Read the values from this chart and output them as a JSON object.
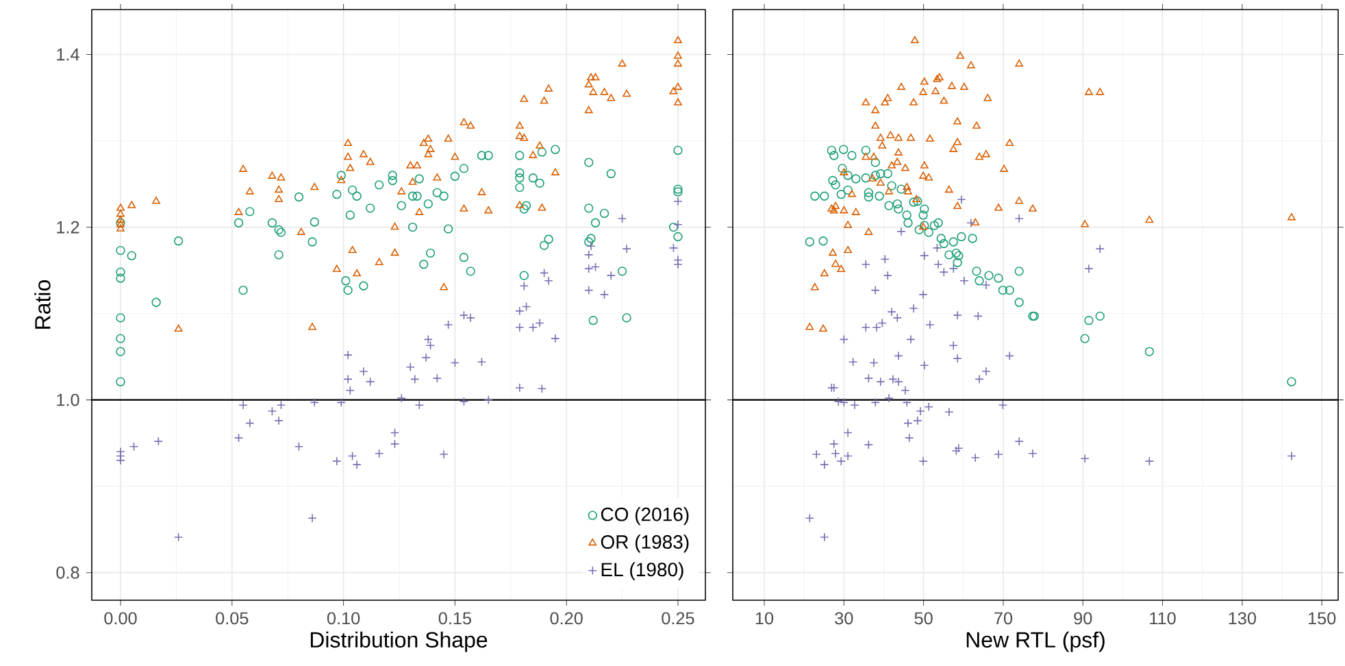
{
  "chart_data": [
    {
      "type": "scatter",
      "xlabel": "Distribution Shape",
      "ylabel": "Ratio",
      "xlim": [
        -0.0129,
        0.2623
      ],
      "ylim": [
        0.768,
        1.452
      ],
      "xticks": [
        {
          "value": 0,
          "label": "0.00"
        },
        0.05,
        {
          "value": 0.1,
          "label": "0.10"
        },
        0.15,
        {
          "value": 0.2,
          "label": "0.20"
        },
        0.25
      ],
      "yticks": [
        0.8,
        {
          "value": 1,
          "label": "1.0"
        },
        1.2,
        1.4
      ],
      "grid": true,
      "legend": "bottom right",
      "ref_lines": [
        {
          "axis": "y",
          "value": 1,
          "color": "#000000"
        }
      ],
      "series": [
        {
          "name": "CO (2016)",
          "color": "#1b9e77",
          "marker": "circle",
          "x": [
            0,
            0,
            0,
            0,
            0,
            0,
            0,
            0,
            0.005,
            0.016,
            0.026,
            0.055,
            0.053,
            0.058,
            0.068,
            0.071,
            0.072,
            0.071,
            0.08,
            0.087,
            0.086,
            0.097,
            0.099,
            0.104,
            0.106,
            0.103,
            0.112,
            0.116,
            0.122,
            0.122,
            0.101,
            0.102,
            0.109,
            0.134,
            0.131,
            0.133,
            0.126,
            0.138,
            0.142,
            0.145,
            0.15,
            0.154,
            0.162,
            0.165,
            0.131,
            0.147,
            0.139,
            0.136,
            0.154,
            0.157,
            0.179,
            0.179,
            0.179,
            0.179,
            0.185,
            0.188,
            0.189,
            0.195,
            0.182,
            0.181,
            0.192,
            0.19,
            0.181,
            0.21,
            0.22,
            0.21,
            0.217,
            0.213,
            0.211,
            0.21,
            0.225,
            0.212,
            0.227,
            0.25,
            0.25,
            0.25,
            0.248,
            0.25
          ],
          "values": [
            1.173,
            1.148,
            1.141,
            1.095,
            1.071,
            1.056,
            1.021,
            1.205,
            1.167,
            1.113,
            1.184,
            1.127,
            1.205,
            1.218,
            1.205,
            1.197,
            1.194,
            1.168,
            1.235,
            1.206,
            1.183,
            1.238,
            1.26,
            1.243,
            1.236,
            1.214,
            1.222,
            1.249,
            1.26,
            1.254,
            1.138,
            1.127,
            1.132,
            1.256,
            1.236,
            1.236,
            1.225,
            1.227,
            1.24,
            1.236,
            1.259,
            1.268,
            1.283,
            1.283,
            1.2,
            1.198,
            1.17,
            1.157,
            1.165,
            1.149,
            1.283,
            1.263,
            1.257,
            1.246,
            1.257,
            1.251,
            1.287,
            1.29,
            1.225,
            1.221,
            1.186,
            1.179,
            1.144,
            1.275,
            1.262,
            1.222,
            1.216,
            1.205,
            1.187,
            1.183,
            1.149,
            1.092,
            1.095,
            1.289,
            1.244,
            1.241,
            1.2,
            1.189
          ]
        },
        {
          "name": "OR (1983)",
          "color": "#d95f02",
          "marker": "triangle",
          "x": [
            0,
            0,
            0,
            0,
            0,
            0.005,
            0.016,
            0.026,
            0.055,
            0.058,
            0.053,
            0.068,
            0.072,
            0.071,
            0.071,
            0.081,
            0.087,
            0.086,
            0.102,
            0.102,
            0.103,
            0.109,
            0.112,
            0.099,
            0.104,
            0.097,
            0.106,
            0.116,
            0.123,
            0.123,
            0.138,
            0.136,
            0.139,
            0.138,
            0.13,
            0.133,
            0.147,
            0.15,
            0.154,
            0.157,
            0.142,
            0.131,
            0.126,
            0.134,
            0.162,
            0.154,
            0.165,
            0.145,
            0.179,
            0.179,
            0.181,
            0.188,
            0.185,
            0.195,
            0.179,
            0.189,
            0.181,
            0.19,
            0.192,
            0.211,
            0.213,
            0.21,
            0.212,
            0.217,
            0.22,
            0.21,
            0.225,
            0.227,
            0.25,
            0.25,
            0.25,
            0.25,
            0.248,
            0.25
          ],
          "values": [
            1.222,
            1.215,
            1.208,
            1.203,
            1.198,
            1.225,
            1.23,
            1.082,
            1.267,
            1.241,
            1.217,
            1.259,
            1.257,
            1.243,
            1.232,
            1.194,
            1.246,
            1.084,
            1.297,
            1.281,
            1.268,
            1.284,
            1.275,
            1.254,
            1.173,
            1.151,
            1.146,
            1.159,
            1.2,
            1.17,
            1.302,
            1.297,
            1.29,
            1.284,
            1.271,
            1.271,
            1.302,
            1.281,
            1.321,
            1.317,
            1.257,
            1.252,
            1.241,
            1.217,
            1.24,
            1.221,
            1.219,
            1.13,
            1.317,
            1.305,
            1.303,
            1.294,
            1.283,
            1.263,
            1.225,
            1.222,
            1.348,
            1.346,
            1.36,
            1.373,
            1.373,
            1.365,
            1.356,
            1.356,
            1.349,
            1.335,
            1.389,
            1.354,
            1.416,
            1.398,
            1.389,
            1.362,
            1.357,
            1.344
          ]
        },
        {
          "name": "EL (1980)",
          "color": "#7570b3",
          "marker": "cross",
          "x": [
            0,
            0,
            0,
            0.006,
            0.017,
            0.026,
            0.055,
            0.058,
            0.053,
            0.068,
            0.072,
            0.071,
            0.087,
            0.08,
            0.086,
            0.099,
            0.097,
            0.104,
            0.106,
            0.116,
            0.123,
            0.123,
            0.126,
            0.134,
            0.145,
            0.154,
            0.102,
            0.109,
            0.102,
            0.103,
            0.112,
            0.147,
            0.154,
            0.157,
            0.138,
            0.139,
            0.137,
            0.13,
            0.132,
            0.142,
            0.15,
            0.162,
            0.165,
            0.179,
            0.189,
            0.179,
            0.182,
            0.179,
            0.185,
            0.188,
            0.181,
            0.19,
            0.192,
            0.195,
            0.21,
            0.211,
            0.21,
            0.213,
            0.21,
            0.217,
            0.22,
            0.225,
            0.227,
            0.25,
            0.25,
            0.248,
            0.25,
            0.25
          ],
          "values": [
            0.94,
            0.935,
            0.93,
            0.946,
            0.952,
            0.841,
            0.994,
            0.973,
            0.956,
            0.987,
            0.994,
            0.976,
            0.997,
            0.946,
            0.863,
            0.997,
            0.929,
            0.935,
            0.925,
            0.938,
            0.949,
            0.962,
            1.002,
            0.994,
            0.937,
            0.998,
            1.052,
            1.033,
            1.024,
            1.011,
            1.021,
            1.087,
            1.098,
            1.095,
            1.07,
            1.063,
            1.049,
            1.038,
            1.024,
            1.025,
            1.043,
            1.044,
            1.0,
            1.014,
            1.013,
            1.103,
            1.108,
            1.084,
            1.084,
            1.089,
            1.132,
            1.147,
            1.138,
            1.071,
            1.168,
            1.178,
            1.152,
            1.154,
            1.127,
            1.122,
            1.144,
            1.21,
            1.175,
            1.23,
            1.203,
            1.176,
            1.162,
            1.157
          ]
        }
      ]
    },
    {
      "type": "scatter",
      "xlabel": "New RTL (psf)",
      "tick_labels": "x",
      "xlim": [
        2.09,
        154.1
      ],
      "ylim": [
        0.768,
        1.452
      ],
      "xticks": [
        10,
        30,
        50,
        70,
        90,
        110,
        130,
        150
      ],
      "yticks": [
        0.8,
        1,
        1.2,
        1.4
      ],
      "grid": true,
      "ref_lines": [
        {
          "axis": "y",
          "value": 1,
          "color": "#000000"
        }
      ],
      "series": [
        {
          "color": "#1b9e77",
          "marker": "circle",
          "x": [
            26.9,
            27.5,
            29.9,
            32.0,
            35.5,
            37.9,
            29.6,
            33.0,
            31.0,
            27.2,
            27.9,
            29.3,
            31.0,
            22.7,
            25.1,
            36.2,
            36.2,
            35.5,
            38.9,
            39.2,
            41.0,
            37.9,
            42.0,
            41.3,
            43.4,
            43.7,
            44.4,
            45.8,
            46.1,
            47.5,
            48.5,
            49.9,
            50.2,
            48.9,
            50.2,
            51.3,
            52.7,
            53.7,
            54.4,
            55.1,
            56.4,
            57.5,
            58.2,
            58.8,
            58.5,
            59.5,
            62.3,
            63.3,
            64.0,
            66.4,
            68.8,
            69.9,
            71.6,
            74.0,
            74.0,
            77.4,
            21.4,
            24.8,
            77.8,
            90.5,
            91.5,
            94.3,
            106.7,
            142.4
          ],
          "values": [
            1.289,
            1.283,
            1.29,
            1.283,
            1.289,
            1.275,
            1.268,
            1.256,
            1.26,
            1.254,
            1.249,
            1.238,
            1.243,
            1.236,
            1.236,
            1.24,
            1.235,
            1.257,
            1.236,
            1.262,
            1.262,
            1.26,
            1.248,
            1.225,
            1.227,
            1.221,
            1.244,
            1.214,
            1.205,
            1.229,
            1.23,
            1.214,
            1.221,
            1.197,
            1.202,
            1.194,
            1.202,
            1.205,
            1.187,
            1.181,
            1.168,
            1.183,
            1.17,
            1.167,
            1.159,
            1.189,
            1.187,
            1.149,
            1.138,
            1.144,
            1.141,
            1.127,
            1.127,
            1.149,
            1.113,
            1.097,
            1.183,
            1.184,
            1.097,
            1.071,
            1.092,
            1.097,
            1.056,
            1.021
          ]
        },
        {
          "color": "#d95f02",
          "marker": "triangle",
          "x": [
            47.8,
            59.2,
            61.9,
            74.0,
            54.0,
            53.4,
            50.2,
            44.4,
            57.1,
            60.2,
            49.9,
            53.0,
            41.0,
            40.3,
            35.5,
            47.5,
            55.1,
            66.1,
            37.9,
            37.9,
            58.5,
            63.3,
            39.2,
            41.7,
            43.7,
            46.8,
            51.6,
            58.5,
            57.5,
            71.6,
            39.6,
            43.7,
            35.5,
            37.5,
            64.0,
            65.7,
            42.0,
            43.4,
            45.4,
            50.2,
            70.2,
            30.0,
            37.2,
            39.2,
            49.9,
            51.3,
            45.8,
            46.1,
            41.3,
            56.4,
            32.0,
            48.2,
            27.9,
            27.5,
            26.9,
            30.0,
            33.0,
            58.5,
            63.0,
            68.8,
            74.0,
            77.4,
            31.0,
            36.2,
            49.9,
            27.2,
            31.0,
            27.9,
            29.3,
            25.1,
            22.7,
            21.4,
            24.8,
            91.5,
            94.3,
            90.5,
            106.7,
            142.4
          ],
          "values": [
            1.416,
            1.398,
            1.387,
            1.389,
            1.373,
            1.371,
            1.368,
            1.362,
            1.363,
            1.362,
            1.356,
            1.357,
            1.349,
            1.344,
            1.344,
            1.344,
            1.346,
            1.349,
            1.335,
            1.317,
            1.322,
            1.317,
            1.303,
            1.306,
            1.303,
            1.303,
            1.302,
            1.298,
            1.29,
            1.297,
            1.294,
            1.286,
            1.281,
            1.281,
            1.281,
            1.284,
            1.271,
            1.275,
            1.268,
            1.271,
            1.267,
            1.263,
            1.256,
            1.251,
            1.259,
            1.257,
            1.246,
            1.241,
            1.241,
            1.243,
            1.238,
            1.232,
            1.224,
            1.219,
            1.221,
            1.219,
            1.217,
            1.224,
            1.205,
            1.222,
            1.23,
            1.221,
            1.202,
            1.194,
            1.2,
            1.17,
            1.173,
            1.157,
            1.151,
            1.146,
            1.13,
            1.084,
            1.082,
            1.356,
            1.356,
            1.203,
            1.208,
            1.211
          ]
        },
        {
          "color": "#7570b3",
          "marker": "cross",
          "x": [
            59.5,
            74.0,
            61.9,
            44.4,
            53.4,
            50.2,
            40.3,
            35.5,
            53.7,
            55.1,
            41.0,
            57.5,
            60.2,
            65.7,
            37.9,
            49.9,
            47.5,
            42.0,
            43.4,
            58.5,
            63.7,
            35.5,
            38.2,
            39.6,
            51.6,
            30.0,
            46.8,
            57.5,
            32.3,
            37.5,
            43.7,
            58.5,
            71.6,
            50.2,
            36.2,
            39.2,
            42.3,
            43.7,
            45.4,
            65.7,
            64.0,
            26.9,
            27.5,
            28.6,
            30.0,
            32.7,
            37.9,
            41.3,
            45.8,
            49.2,
            51.3,
            46.1,
            48.5,
            56.4,
            69.9,
            31.0,
            46.4,
            27.5,
            36.2,
            23.1,
            25.1,
            27.9,
            29.3,
            31.0,
            49.9,
            58.8,
            58.2,
            63.0,
            68.8,
            74.0,
            77.4,
            90.5,
            106.7,
            142.4,
            21.4,
            25.1,
            94.3,
            91.5
          ],
          "values": [
            1.232,
            1.21,
            1.205,
            1.195,
            1.176,
            1.167,
            1.163,
            1.157,
            1.157,
            1.148,
            1.144,
            1.152,
            1.138,
            1.133,
            1.127,
            1.122,
            1.106,
            1.102,
            1.095,
            1.098,
            1.097,
            1.084,
            1.084,
            1.089,
            1.087,
            1.07,
            1.07,
            1.063,
            1.044,
            1.043,
            1.051,
            1.048,
            1.051,
            1.04,
            1.025,
            1.021,
            1.024,
            1.021,
            1.011,
            1.033,
            1.024,
            1.014,
            1.014,
            0.998,
            0.997,
            0.994,
            0.997,
            1.002,
            0.997,
            0.987,
            0.992,
            0.973,
            0.976,
            0.986,
            0.994,
            0.962,
            0.956,
            0.949,
            0.948,
            0.937,
            0.925,
            0.938,
            0.929,
            0.935,
            0.929,
            0.944,
            0.941,
            0.933,
            0.937,
            0.952,
            0.938,
            0.932,
            0.929,
            0.935,
            0.863,
            0.841,
            1.175,
            1.152
          ]
        }
      ]
    }
  ]
}
